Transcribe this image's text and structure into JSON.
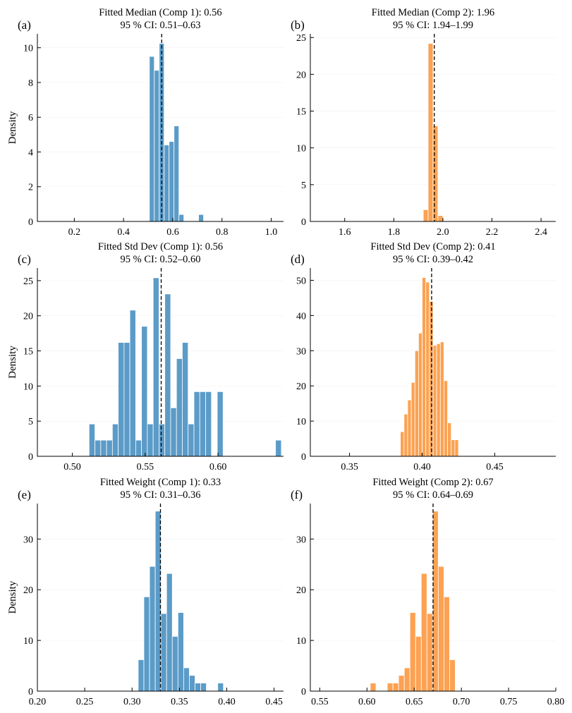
{
  "colors": {
    "comp1": "#5b9bc8",
    "comp2": "#fca252"
  },
  "chart_data": [
    {
      "type": "bar",
      "panel": "(a)",
      "title": [
        "Fitted Median (Comp 1): 0.56",
        "95 % CI: 0.51–0.63"
      ],
      "ylabel": "Density",
      "color": "comp1",
      "xlim": [
        0.05,
        1.05
      ],
      "ylim": [
        0,
        10.8
      ],
      "xticks": [
        0.2,
        0.4,
        0.6,
        0.8,
        1.0
      ],
      "xtick_labels": [
        "0.2",
        "0.4",
        "0.6",
        "0.8",
        "1.0"
      ],
      "yticks": [
        0,
        2,
        4,
        6,
        8,
        10
      ],
      "ytick_labels": [
        "0",
        "2",
        "4",
        "6",
        "8",
        "10"
      ],
      "median": 0.555,
      "bins": [
        [
          0.505,
          0.525,
          9.5
        ],
        [
          0.525,
          0.545,
          8.7
        ],
        [
          0.545,
          0.565,
          10.25
        ],
        [
          0.565,
          0.585,
          4.4
        ],
        [
          0.585,
          0.605,
          4.6
        ],
        [
          0.605,
          0.625,
          5.5
        ],
        [
          0.625,
          0.645,
          0.4
        ],
        [
          0.705,
          0.725,
          0.4
        ]
      ]
    },
    {
      "type": "bar",
      "panel": "(b)",
      "title": [
        "Fitted Median (Comp 2): 1.96",
        "95 % CI: 1.94–1.99"
      ],
      "ylabel": "",
      "color": "comp2",
      "xlim": [
        1.46,
        2.46
      ],
      "ylim": [
        0,
        25.5
      ],
      "xticks": [
        1.6,
        1.8,
        2.0,
        2.2,
        2.4
      ],
      "xtick_labels": [
        "1.6",
        "1.8",
        "2.0",
        "2.2",
        "2.4"
      ],
      "yticks": [
        0,
        5,
        10,
        15,
        20,
        25
      ],
      "ytick_labels": [
        "0",
        "5",
        "10",
        "15",
        "20",
        "25"
      ],
      "median": 1.965,
      "bins": [
        [
          1.92,
          1.94,
          1.6
        ],
        [
          1.94,
          1.96,
          24.2
        ],
        [
          1.96,
          1.98,
          13.0
        ],
        [
          1.98,
          2.0,
          0.8
        ]
      ]
    },
    {
      "type": "bar",
      "panel": "(c)",
      "title": [
        "Fitted Std Dev (Comp 1): 0.56",
        "95 % CI: 0.52–0.60"
      ],
      "ylabel": "Density",
      "color": "comp1",
      "xlim": [
        0.476,
        0.645
      ],
      "ylim": [
        0,
        26.8
      ],
      "xticks": [
        0.5,
        0.55,
        0.6
      ],
      "xtick_labels": [
        "0.50",
        "0.55",
        "0.60"
      ],
      "yticks": [
        0,
        5,
        10,
        15,
        20,
        25
      ],
      "ytick_labels": [
        "0",
        "5",
        "10",
        "15",
        "20",
        "25"
      ],
      "median": 0.561,
      "bins": [
        [
          0.5115,
          0.5155,
          4.6
        ],
        [
          0.5155,
          0.5195,
          2.3
        ],
        [
          0.5195,
          0.5235,
          2.3
        ],
        [
          0.5235,
          0.5275,
          2.3
        ],
        [
          0.5275,
          0.5315,
          4.6
        ],
        [
          0.5315,
          0.5355,
          16.2
        ],
        [
          0.5355,
          0.5395,
          16.2
        ],
        [
          0.5395,
          0.5435,
          20.8
        ],
        [
          0.5435,
          0.5475,
          2.3
        ],
        [
          0.5475,
          0.5515,
          18.5
        ],
        [
          0.5515,
          0.5555,
          4.6
        ],
        [
          0.5555,
          0.5595,
          25.4
        ],
        [
          0.5595,
          0.5635,
          4.6
        ],
        [
          0.5635,
          0.5675,
          23.1
        ],
        [
          0.5675,
          0.5715,
          6.9
        ],
        [
          0.5715,
          0.5755,
          13.9
        ],
        [
          0.5755,
          0.5795,
          16.2
        ],
        [
          0.5795,
          0.5835,
          4.6
        ],
        [
          0.5835,
          0.5875,
          9.2
        ],
        [
          0.5875,
          0.5915,
          9.2
        ],
        [
          0.5915,
          0.5955,
          9.2
        ],
        [
          0.5995,
          0.6035,
          9.2
        ],
        [
          0.6395,
          0.6435,
          2.3
        ]
      ]
    },
    {
      "type": "bar",
      "panel": "(d)",
      "title": [
        "Fitted Std Dev (Comp 2): 0.41",
        "95 % CI: 0.39–0.42"
      ],
      "ylabel": "",
      "color": "comp2",
      "xlim": [
        0.323,
        0.492
      ],
      "ylim": [
        0,
        53.5
      ],
      "xticks": [
        0.35,
        0.4,
        0.45
      ],
      "xtick_labels": [
        "0.35",
        "0.40",
        "0.45"
      ],
      "yticks": [
        0,
        10,
        20,
        30,
        40,
        50
      ],
      "ytick_labels": [
        "0",
        "10",
        "20",
        "30",
        "40",
        "50"
      ],
      "median": 0.4065,
      "bins": [
        [
          0.385,
          0.3875,
          7.0
        ],
        [
          0.3875,
          0.39,
          12.0
        ],
        [
          0.39,
          0.3925,
          16.0
        ],
        [
          0.3925,
          0.395,
          21.0
        ],
        [
          0.395,
          0.3975,
          30.0
        ],
        [
          0.3975,
          0.4,
          35.0
        ],
        [
          0.4,
          0.4025,
          50.8
        ],
        [
          0.4025,
          0.405,
          49.5
        ],
        [
          0.405,
          0.4075,
          44.0
        ],
        [
          0.4075,
          0.41,
          31.5
        ],
        [
          0.41,
          0.4125,
          32.0
        ],
        [
          0.4125,
          0.415,
          32.5
        ],
        [
          0.415,
          0.4175,
          21.5
        ],
        [
          0.4175,
          0.42,
          9.5
        ],
        [
          0.42,
          0.4225,
          4.7
        ],
        [
          0.4225,
          0.425,
          4.7
        ]
      ]
    },
    {
      "type": "bar",
      "panel": "(e)",
      "title": [
        "Fitted Weight (Comp 1): 0.33",
        "95 % CI: 0.31–0.36"
      ],
      "ylabel": "Density",
      "color": "comp1",
      "xlim": [
        0.2,
        0.46
      ],
      "ylim": [
        0,
        37
      ],
      "xticks": [
        0.2,
        0.25,
        0.3,
        0.35,
        0.4,
        0.45
      ],
      "xtick_labels": [
        "0.20",
        "0.25",
        "0.30",
        "0.35",
        "0.40",
        "0.45"
      ],
      "yticks": [
        0,
        10,
        20,
        30
      ],
      "ytick_labels": [
        "0",
        "10",
        "20",
        "30"
      ],
      "median": 0.33,
      "bins": [
        [
          0.3065,
          0.3125,
          6.2
        ],
        [
          0.3125,
          0.3185,
          18.6
        ],
        [
          0.3185,
          0.3245,
          24.6
        ],
        [
          0.3245,
          0.3305,
          35.5
        ],
        [
          0.3305,
          0.3365,
          15.3
        ],
        [
          0.3365,
          0.3425,
          23.2
        ],
        [
          0.3425,
          0.3485,
          10.8
        ],
        [
          0.3485,
          0.3545,
          15.5
        ],
        [
          0.3545,
          0.3605,
          4.6
        ],
        [
          0.3605,
          0.3665,
          3.1
        ],
        [
          0.3665,
          0.3725,
          1.6
        ],
        [
          0.3725,
          0.3785,
          1.6
        ],
        [
          0.3905,
          0.3965,
          1.6
        ]
      ]
    },
    {
      "type": "bar",
      "panel": "(f)",
      "title": [
        "Fitted Weight (Comp 2): 0.67",
        "95 % CI: 0.64–0.69"
      ],
      "ylabel": "",
      "color": "comp2",
      "xlim": [
        0.54,
        0.8
      ],
      "ylim": [
        0,
        37
      ],
      "xticks": [
        0.55,
        0.6,
        0.65,
        0.7,
        0.75,
        0.8
      ],
      "xtick_labels": [
        "0.55",
        "0.60",
        "0.65",
        "0.70",
        "0.75",
        "0.80"
      ],
      "yticks": [
        0,
        10,
        20,
        30
      ],
      "ytick_labels": [
        "0",
        "10",
        "20",
        "30"
      ],
      "median": 0.67,
      "bins": [
        [
          0.6035,
          0.6095,
          1.6
        ],
        [
          0.6215,
          0.6275,
          1.6
        ],
        [
          0.6275,
          0.6335,
          1.6
        ],
        [
          0.6335,
          0.6395,
          3.1
        ],
        [
          0.6395,
          0.6455,
          4.6
        ],
        [
          0.6455,
          0.6515,
          15.5
        ],
        [
          0.6515,
          0.6575,
          10.8
        ],
        [
          0.6575,
          0.6635,
          23.2
        ],
        [
          0.6635,
          0.6695,
          15.3
        ],
        [
          0.6695,
          0.6755,
          35.5
        ],
        [
          0.6755,
          0.6815,
          24.6
        ],
        [
          0.6815,
          0.6875,
          18.6
        ],
        [
          0.6875,
          0.6935,
          6.2
        ]
      ]
    }
  ]
}
